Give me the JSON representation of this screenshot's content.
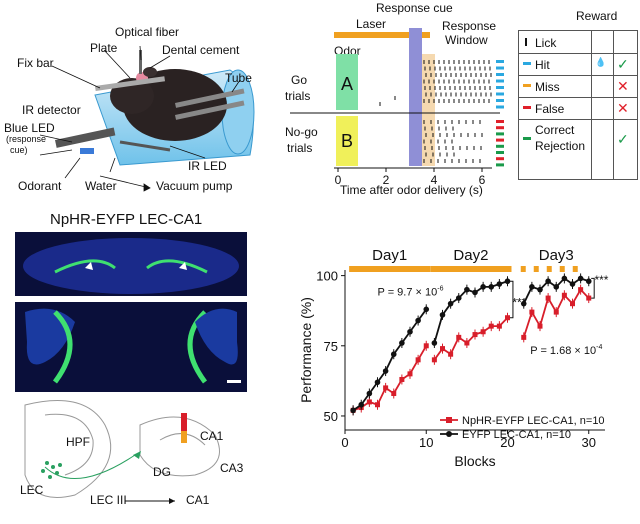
{
  "panel_a": {
    "labels": {
      "optical_fiber": "Optical fiber",
      "plate": "Plate",
      "dental_cement": "Dental cement",
      "fix_bar": "Fix bar",
      "tube": "Tube",
      "ir_detector": "IR detector",
      "blue_led": "Blue LED",
      "response_cue_note_a": "(response",
      "response_cue_note_b": "cue)",
      "ir_led": "IR LED",
      "odorant": "Odorant",
      "water": "Water",
      "vacuum_pump": "Vacuum pump"
    }
  },
  "panel_b": {
    "response_cue": "Response cue",
    "laser": "Laser",
    "response_window_a": "Response",
    "response_window_b": "Window",
    "odor": "Odor",
    "go_a": "Go",
    "go_b": "trials",
    "nogo_a": "No-go",
    "nogo_b": "trials",
    "odor_a": "A",
    "odor_b": "B",
    "xlabel": "Time after odor delivery (s)",
    "xticks": [
      "0",
      "2",
      "4",
      "6"
    ],
    "colors": {
      "odor_a": "#7fe0a6",
      "odor_b": "#f0f05a",
      "laser": "#f0a020",
      "cue": "#8f8fd6",
      "window": "#f5d9b0"
    }
  },
  "legend_b": {
    "header": "Reward",
    "items": [
      {
        "label": "Lick",
        "color": "#111111",
        "mark": ""
      },
      {
        "label": "Hit",
        "color": "#2aa8e0",
        "mark": "✓"
      },
      {
        "label": "Miss",
        "color": "#f0a020",
        "mark": "✕"
      },
      {
        "label": "False",
        "color": "#e0202a",
        "mark": "✕"
      },
      {
        "label": "Correct",
        "label2": "Rejection",
        "color": "#1a9a4a",
        "mark": "✓"
      }
    ]
  },
  "panel_c": {
    "title": "NpHR-EYFP LEC-CA1",
    "labels": {
      "hpf": "HPF",
      "ca1_top": "CA1",
      "ca3": "CA3",
      "dg": "DG",
      "lec": "LEC",
      "lec_iii": "LEC III",
      "ca1_bottom": "CA1"
    }
  },
  "chart_data": {
    "type": "line",
    "title": "",
    "xlabel": "Blocks",
    "ylabel": "Performance (%)",
    "xlim": [
      0,
      32
    ],
    "ylim": [
      45,
      102
    ],
    "xticks": [
      0,
      10,
      20,
      30
    ],
    "yticks": [
      50,
      75,
      100
    ],
    "days": [
      "Day1",
      "Day2",
      "Day3"
    ],
    "annotations": {
      "p_day2": "P = 9.7 × 10",
      "p_day2_exp": "-6",
      "p_day3": "P = 1.68 × 10",
      "p_day3_exp": "-4",
      "stars": "***"
    },
    "series": [
      {
        "name": "NpHR-EYFP LEC-CA1, n=10",
        "color": "#d81e2a",
        "segments": [
          {
            "x": [
              1,
              2,
              3,
              4,
              5,
              6,
              7,
              8,
              9,
              10
            ],
            "y": [
              52,
              53,
              55,
              54,
              60,
              58,
              63,
              65,
              70,
              75
            ]
          },
          {
            "x": [
              11,
              12,
              13,
              14,
              15,
              16,
              17,
              18,
              19,
              20
            ],
            "y": [
              70,
              74,
              72,
              78,
              76,
              79,
              80,
              82,
              82,
              85
            ]
          },
          {
            "x": [
              22,
              23,
              24,
              25,
              26,
              27,
              28,
              29,
              30
            ],
            "y": [
              78,
              87,
              82,
              92,
              87,
              93,
              90,
              95,
              92
            ]
          }
        ]
      },
      {
        "name": "EYFP LEC-CA1, n=10",
        "color": "#111111",
        "segments": [
          {
            "x": [
              1,
              2,
              3,
              4,
              5,
              6,
              7,
              8,
              9,
              10
            ],
            "y": [
              52,
              54,
              58,
              62,
              66,
              72,
              76,
              80,
              84,
              88
            ]
          },
          {
            "x": [
              11,
              12,
              13,
              14,
              15,
              16,
              17,
              18,
              19,
              20
            ],
            "y": [
              76,
              86,
              90,
              92,
              95,
              94,
              96,
              96,
              97,
              98
            ]
          },
          {
            "x": [
              22,
              23,
              24,
              25,
              26,
              27,
              28,
              29,
              30
            ],
            "y": [
              90,
              96,
              95,
              98,
              96,
              99,
              97,
              99,
              98
            ]
          }
        ]
      }
    ],
    "legend_position": "bottom-right"
  }
}
